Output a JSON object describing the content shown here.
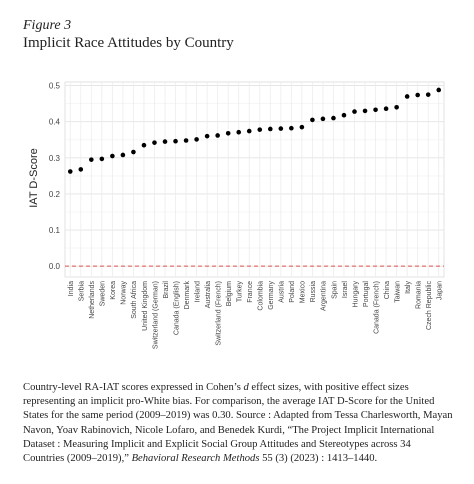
{
  "figure": {
    "label": "Figure 3",
    "title": "Implicit Race Attitudes by Country"
  },
  "caption": {
    "part1": "Country-level RA-IAT scores expressed in Cohen’s ",
    "d": "d",
    "part2": " effect sizes, with positive effect sizes representing an implicit pro-White bias. For comparison, the average IAT D-Score for the United States for the same period (2009–2019) was 0.30. Source : Adapted from Tessa Charlesworth, Mayan Navon, Yoav Rabinovich, Nicole Lofaro, and Benedek Kurdi, “The Project Implicit International Dataset : Measuring Implicit and Explicit Social Group Attitudes and Stereotypes across 34 Countries (2009–2019),” ",
    "journal": "Behavioral Research Methods",
    "part3": " 55 (3) (2023) : 1413–1440."
  },
  "chart_data": {
    "type": "scatter",
    "ylabel": "IAT D-Score",
    "xlabel": "",
    "ylim": [
      -0.03,
      0.51
    ],
    "yticks": [
      0.0,
      0.1,
      0.2,
      0.3,
      0.4,
      0.5
    ],
    "grid": true,
    "reference_line": {
      "y": 0.0,
      "color": "#d9534f",
      "style": "dashed"
    },
    "point_color": "#000000",
    "categories": [
      "India",
      "Serbia",
      "Netherlands",
      "Sweden",
      "Korea",
      "Norway",
      "South Africa",
      "United Kingdom",
      "Switzerland (German)",
      "Brazil",
      "Canada (English)",
      "Denmark",
      "Ireland",
      "Australia",
      "Switzerland (French)",
      "Belgium",
      "Turkey",
      "France",
      "Colombia",
      "Germany",
      "Austria",
      "Poland",
      "Mexico",
      "Russia",
      "Argentina",
      "Spain",
      "Israel",
      "Hungary",
      "Portugal",
      "Canada (French)",
      "China",
      "Taiwan",
      "Italy",
      "Romania",
      "Czech Republic",
      "Japan"
    ],
    "values": [
      0.262,
      0.268,
      0.295,
      0.297,
      0.305,
      0.308,
      0.316,
      0.335,
      0.342,
      0.345,
      0.346,
      0.348,
      0.351,
      0.36,
      0.362,
      0.368,
      0.371,
      0.374,
      0.378,
      0.38,
      0.381,
      0.382,
      0.385,
      0.405,
      0.408,
      0.41,
      0.418,
      0.428,
      0.43,
      0.433,
      0.436,
      0.44,
      0.47,
      0.474,
      0.475,
      0.488
    ]
  }
}
